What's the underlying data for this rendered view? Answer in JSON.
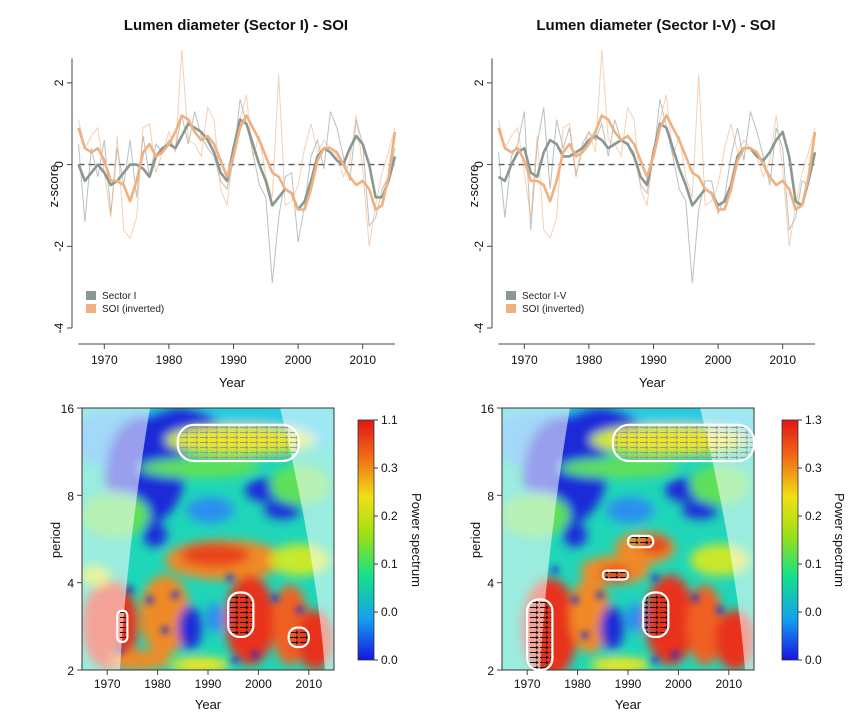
{
  "chart_data": [
    {
      "type": "line",
      "title": "Lumen diameter (Sector I) - SOI",
      "xlabel": "Year",
      "ylabel": "z-score",
      "xlim": [
        1965,
        2015
      ],
      "ylim": [
        -4,
        3
      ],
      "x_ticks": [
        1970,
        1980,
        1990,
        2000,
        2010
      ],
      "y_ticks": [
        -4,
        -2,
        0,
        2
      ],
      "legend": "bottom-left",
      "years": [
        1966,
        1967,
        1968,
        1969,
        1970,
        1971,
        1972,
        1973,
        1974,
        1975,
        1976,
        1977,
        1978,
        1979,
        1980,
        1981,
        1982,
        1983,
        1984,
        1985,
        1986,
        1987,
        1988,
        1989,
        1990,
        1991,
        1992,
        1993,
        1994,
        1995,
        1996,
        1997,
        1998,
        1999,
        2000,
        2001,
        2002,
        2003,
        2004,
        2005,
        2006,
        2007,
        2008,
        2009,
        2010,
        2011,
        2012,
        2013,
        2014,
        2015
      ],
      "series": [
        {
          "name": "Sector I",
          "color": "#8a9892",
          "raw": [
            0.5,
            -1.4,
            0.4,
            -0.3,
            0.6,
            -1.2,
            0.4,
            -0.5,
            0.6,
            -0.8,
            0.7,
            -0.3,
            0.5,
            0.3,
            0.6,
            0.4,
            1.2,
            0.5,
            1.3,
            0.7,
            0.4,
            0.2,
            -0.4,
            -0.6,
            0.1,
            1.6,
            1.0,
            0.3,
            -0.5,
            -0.8,
            -2.9,
            -1.3,
            -0.3,
            -0.2,
            -1.9,
            -1.0,
            0.2,
            0.6,
            -0.1,
            1.3,
            0.9,
            0.2,
            -0.4,
            1.1,
            0.5,
            -1.5,
            -1.3,
            -0.6,
            -0.3,
            0.4
          ],
          "smooth": [
            0.0,
            -0.4,
            -0.2,
            0.0,
            -0.2,
            -0.5,
            -0.4,
            -0.2,
            0.0,
            0.0,
            -0.1,
            -0.3,
            0.2,
            0.4,
            0.5,
            0.4,
            0.7,
            1.0,
            0.9,
            0.8,
            0.6,
            0.3,
            -0.2,
            -0.4,
            0.4,
            1.1,
            1.0,
            0.5,
            0.0,
            -0.4,
            -1.0,
            -0.8,
            -0.6,
            -0.7,
            -1.1,
            -0.9,
            -0.4,
            0.2,
            0.4,
            0.3,
            0.1,
            0.0,
            0.4,
            0.7,
            0.5,
            0.0,
            -0.8,
            -0.8,
            -0.4,
            0.2
          ]
        },
        {
          "name": "SOI (inverted)",
          "color": "#f0b080",
          "raw": [
            1.1,
            0.4,
            0.7,
            0.9,
            -0.2,
            -1.3,
            0.7,
            -1.6,
            -1.8,
            -1.3,
            0.9,
            1.0,
            -0.2,
            0.3,
            0.8,
            0.3,
            2.8,
            0.6,
            0.5,
            0.2,
            1.4,
            1.1,
            -0.6,
            -1.0,
            0.3,
            1.1,
            1.7,
            0.2,
            0.7,
            -0.3,
            -0.8,
            2.2,
            -1.0,
            -0.9,
            -0.5,
            0.4,
            1.0,
            0.3,
            0.6,
            0.4,
            0.2,
            -0.3,
            0.1,
            1.2,
            -0.1,
            -2.0,
            -1.0,
            -0.2,
            0.3,
            0.9
          ],
          "smooth": [
            0.9,
            0.4,
            0.3,
            0.4,
            0.1,
            -0.4,
            -0.4,
            -0.5,
            -0.9,
            -0.4,
            0.3,
            0.5,
            0.2,
            0.3,
            0.5,
            0.8,
            1.2,
            1.1,
            0.8,
            0.6,
            0.7,
            0.5,
            0.1,
            -0.3,
            0.2,
            0.9,
            1.2,
            0.9,
            0.6,
            0.2,
            -0.2,
            -0.3,
            -0.6,
            -0.7,
            -1.1,
            -1.1,
            -0.6,
            0.1,
            0.4,
            0.4,
            0.3,
            0.0,
            -0.3,
            -0.5,
            -0.4,
            -0.6,
            -1.1,
            -1.0,
            -0.3,
            0.8
          ]
        }
      ]
    },
    {
      "type": "line",
      "title": "Lumen diameter (Sector I-V) - SOI",
      "xlabel": "Year",
      "ylabel": "z-score",
      "xlim": [
        1965,
        2015
      ],
      "ylim": [
        -4,
        3
      ],
      "x_ticks": [
        1970,
        1980,
        1990,
        2000,
        2010
      ],
      "y_ticks": [
        -4,
        -2,
        0,
        2
      ],
      "legend": "bottom-left",
      "years": [
        1966,
        1967,
        1968,
        1969,
        1970,
        1971,
        1972,
        1973,
        1974,
        1975,
        1976,
        1977,
        1978,
        1979,
        1980,
        1981,
        1982,
        1983,
        1984,
        1985,
        1986,
        1987,
        1988,
        1989,
        1990,
        1991,
        1992,
        1993,
        1994,
        1995,
        1996,
        1997,
        1998,
        1999,
        2000,
        2001,
        2002,
        2003,
        2004,
        2005,
        2006,
        2007,
        2008,
        2009,
        2010,
        2011,
        2012,
        2013,
        2014,
        2015
      ],
      "series": [
        {
          "name": "Sector I-V",
          "color": "#8a9892",
          "raw": [
            0.3,
            -1.3,
            0.2,
            0.5,
            1.3,
            -1.6,
            0.5,
            1.4,
            -0.6,
            1.1,
            0.4,
            0.9,
            -0.3,
            0.5,
            0.8,
            0.6,
            1.0,
            0.2,
            1.1,
            0.6,
            0.5,
            0.3,
            -0.5,
            -0.7,
            0.2,
            1.6,
            0.9,
            0.2,
            -0.6,
            -0.9,
            -2.9,
            -1.1,
            -0.4,
            -0.4,
            -1.2,
            -0.8,
            0.2,
            0.9,
            0.1,
            1.3,
            0.8,
            0.2,
            -0.5,
            0.9,
            0.4,
            -1.6,
            -1.3,
            -0.4,
            -0.5,
            0.7
          ],
          "smooth": [
            -0.3,
            -0.4,
            0.0,
            0.3,
            0.4,
            -0.2,
            -0.3,
            0.3,
            0.6,
            0.5,
            0.2,
            0.2,
            0.3,
            0.4,
            0.6,
            0.7,
            0.6,
            0.4,
            0.5,
            0.6,
            0.5,
            0.2,
            -0.3,
            -0.5,
            0.3,
            1.0,
            0.9,
            0.4,
            -0.1,
            -0.5,
            -1.0,
            -0.8,
            -0.6,
            -0.7,
            -1.0,
            -0.9,
            -0.5,
            0.2,
            0.4,
            0.4,
            0.2,
            0.1,
            0.3,
            0.6,
            0.8,
            0.2,
            -0.9,
            -1.0,
            -0.4,
            0.3
          ]
        },
        {
          "name": "SOI (inverted)",
          "color": "#f0b080",
          "raw": [
            1.1,
            0.4,
            0.7,
            0.9,
            -0.2,
            -1.3,
            0.7,
            -1.6,
            -1.8,
            -1.3,
            0.9,
            1.0,
            -0.2,
            0.3,
            0.8,
            0.3,
            2.8,
            0.6,
            0.5,
            0.2,
            1.4,
            1.1,
            -0.6,
            -1.0,
            0.3,
            1.1,
            1.7,
            0.2,
            0.7,
            -0.3,
            -0.8,
            2.2,
            -1.0,
            -0.9,
            -0.5,
            0.4,
            1.0,
            0.3,
            0.6,
            0.4,
            0.2,
            -0.3,
            0.1,
            1.2,
            -0.1,
            -2.0,
            -1.0,
            -0.2,
            0.3,
            0.9
          ],
          "smooth": [
            0.9,
            0.4,
            0.3,
            0.4,
            0.1,
            -0.4,
            -0.4,
            -0.5,
            -0.9,
            -0.4,
            0.3,
            0.5,
            0.2,
            0.3,
            0.5,
            0.8,
            1.2,
            1.1,
            0.8,
            0.6,
            0.7,
            0.5,
            0.1,
            -0.3,
            0.2,
            0.9,
            1.2,
            0.9,
            0.6,
            0.2,
            -0.2,
            -0.3,
            -0.6,
            -0.7,
            -1.1,
            -1.1,
            -0.6,
            0.1,
            0.4,
            0.4,
            0.3,
            0.0,
            -0.3,
            -0.5,
            -0.4,
            -0.6,
            -1.1,
            -1.0,
            -0.3,
            0.8
          ]
        }
      ]
    },
    {
      "type": "heatmap",
      "xlabel": "Year",
      "ylabel": "period",
      "xlim": [
        1965,
        2015
      ],
      "period_range": [
        2,
        16
      ],
      "x_ticks": [
        1970,
        1980,
        1990,
        2000,
        2010
      ],
      "y_ticks": [
        2,
        4,
        8,
        16
      ],
      "colorbar": {
        "label": "Power spectrum",
        "tick_labels": [
          "1.1",
          "0.3",
          "0.2",
          "0.1",
          "0.0",
          "0.0"
        ],
        "colors": [
          "#1515e0",
          "#15a0f0",
          "#15e08a",
          "#9ae015",
          "#f0e015",
          "#f07015",
          "#e01515"
        ]
      },
      "significant_regions": [
        {
          "year_range": [
            1984,
            2008
          ],
          "period_range": [
            10.5,
            14
          ]
        },
        {
          "year_range": [
            1972,
            1974
          ],
          "period_range": [
            2.5,
            3.2
          ]
        },
        {
          "year_range": [
            1994,
            1999
          ],
          "period_range": [
            2.6,
            3.7
          ]
        },
        {
          "year_range": [
            2006,
            2010
          ],
          "period_range": [
            2.4,
            2.8
          ]
        }
      ]
    },
    {
      "type": "heatmap",
      "xlabel": "Year",
      "ylabel": "period",
      "xlim": [
        1965,
        2015
      ],
      "period_range": [
        2,
        16
      ],
      "x_ticks": [
        1970,
        1980,
        1990,
        2000,
        2010
      ],
      "y_ticks": [
        2,
        4,
        8,
        16
      ],
      "colorbar": {
        "label": "Power spectrum",
        "tick_labels": [
          "1.3",
          "0.3",
          "0.2",
          "0.1",
          "0.0",
          "0.0"
        ],
        "colors": [
          "#1515e0",
          "#15a0f0",
          "#15e08a",
          "#9ae015",
          "#f0e015",
          "#f07015",
          "#e01515"
        ]
      },
      "significant_regions": [
        {
          "year_range": [
            1987,
            2015
          ],
          "period_range": [
            10.5,
            14
          ]
        },
        {
          "year_range": [
            1970,
            1975
          ],
          "period_range": [
            2.0,
            3.5
          ]
        },
        {
          "year_range": [
            1993,
            1998
          ],
          "period_range": [
            2.6,
            3.7
          ]
        },
        {
          "year_range": [
            1985,
            1990
          ],
          "period_range": [
            4.1,
            4.4
          ]
        },
        {
          "year_range": [
            1990,
            1995
          ],
          "period_range": [
            5.3,
            5.8
          ]
        }
      ]
    }
  ]
}
